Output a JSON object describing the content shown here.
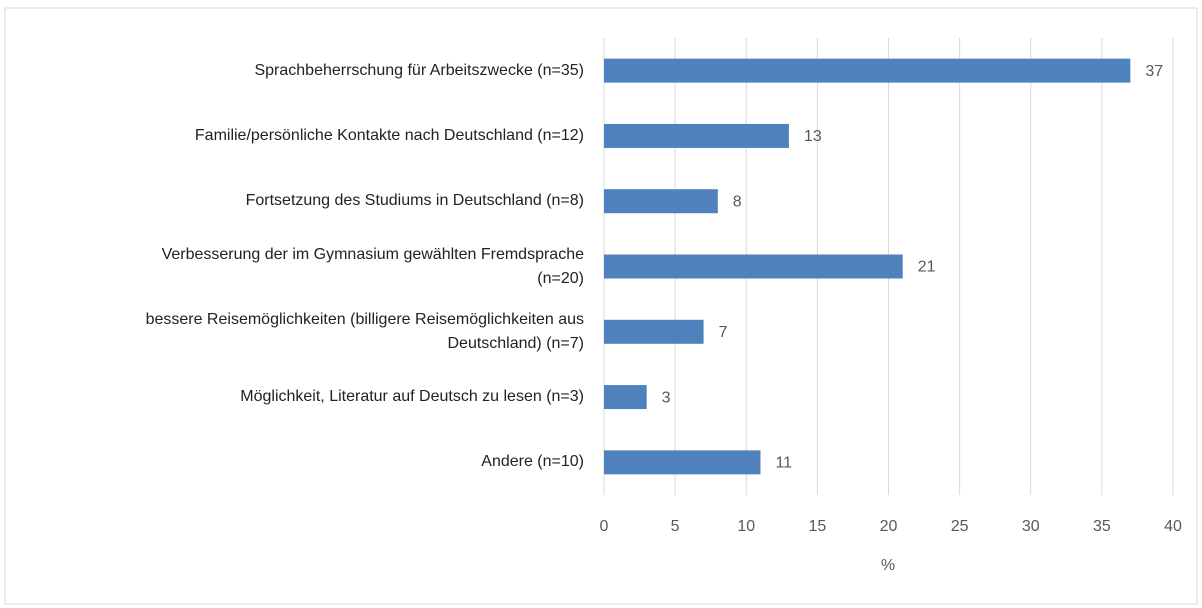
{
  "chart_data": {
    "type": "bar",
    "orientation": "horizontal",
    "categories": [
      "Sprachbeherrschung für Arbeitszwecke (n=35)",
      "Familie/persönliche Kontakte nach Deutschland (n=12)",
      "Fortsetzung des Studiums in Deutschland (n=8)",
      "Verbesserung der im Gymnasium gewählten Fremdsprache (n=20)",
      "bessere Reisemöglichkeiten (billigere Reisemöglichkeiten aus Deutschland) (n=7)",
      "Möglichkeit, Literatur auf Deutsch zu lesen (n=3)",
      "Andere (n=10)"
    ],
    "values": [
      37,
      13,
      8,
      21,
      7,
      3,
      11
    ],
    "color": "#4f81bd",
    "xlabel": "%",
    "xlim": [
      0,
      40
    ],
    "xticks": [
      0,
      5,
      10,
      15,
      20,
      25,
      30,
      35,
      40
    ],
    "grid": true
  }
}
